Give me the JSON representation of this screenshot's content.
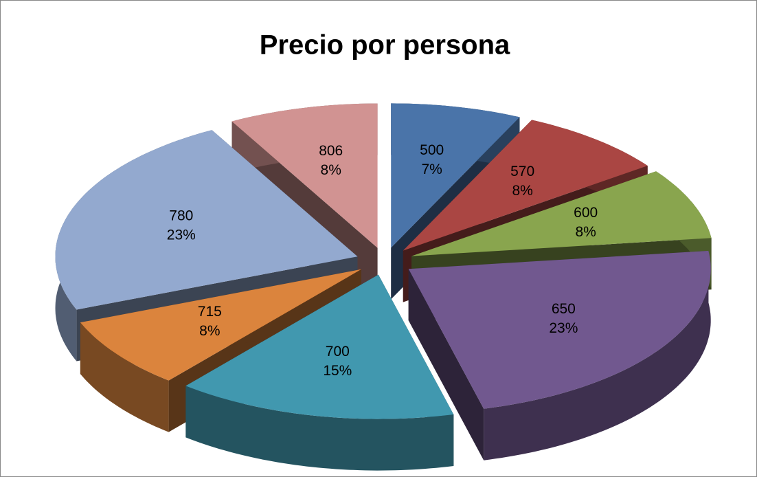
{
  "chart_data": {
    "type": "pie",
    "title": "Precio por persona",
    "categories": [
      "500",
      "570",
      "600",
      "650",
      "700",
      "715",
      "780",
      "806"
    ],
    "values": [
      7,
      8,
      8,
      23,
      15,
      8,
      23,
      8
    ],
    "value_labels": [
      "7%",
      "8%",
      "8%",
      "23%",
      "15%",
      "8%",
      "23%",
      "8%"
    ],
    "colors": [
      "#4a74a9",
      "#aa4643",
      "#89a54e",
      "#71588f",
      "#4198af",
      "#db843d",
      "#93a9cf",
      "#d19392"
    ]
  }
}
